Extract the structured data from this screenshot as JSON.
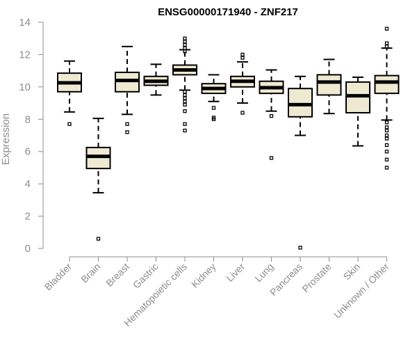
{
  "chart_data": {
    "type": "box",
    "title": "ENSG00000171940 - ZNF217",
    "xlabel": "",
    "ylabel": "Expression",
    "ylim": [
      0,
      14
    ],
    "yticks": [
      0,
      2,
      4,
      6,
      8,
      10,
      12,
      14
    ],
    "grid": false,
    "box_fill": "#efe9d2",
    "box_stroke": "#000000",
    "axis_color": "#8c8c8c",
    "categories": [
      "Bladder",
      "Brain",
      "Breast",
      "Gastric",
      "Hematopoietic cells",
      "Kidney",
      "Liver",
      "Lung",
      "Pancreas",
      "Prostate",
      "Skin",
      "Unknown / Other"
    ],
    "boxes": [
      {
        "min": 8.45,
        "q1": 9.7,
        "median": 10.25,
        "q3": 10.85,
        "max": 11.6,
        "outliers": [
          7.7
        ]
      },
      {
        "min": 3.45,
        "q1": 4.95,
        "median": 5.7,
        "q3": 6.25,
        "max": 8.05,
        "outliers": [
          0.6
        ]
      },
      {
        "min": 8.3,
        "q1": 9.7,
        "median": 10.4,
        "q3": 10.9,
        "max": 12.5,
        "outliers": [
          7.7,
          7.2
        ]
      },
      {
        "min": 9.5,
        "q1": 10.1,
        "median": 10.35,
        "q3": 10.65,
        "max": 11.4,
        "outliers": []
      },
      {
        "min": 9.8,
        "q1": 10.75,
        "median": 11.05,
        "q3": 11.35,
        "max": 12.3,
        "outliers": [
          13.0,
          12.8,
          12.6,
          12.4,
          12.2,
          9.7,
          9.5,
          9.3,
          9.1,
          8.9,
          8.5,
          7.7,
          7.3
        ]
      },
      {
        "min": 9.1,
        "q1": 9.6,
        "median": 9.9,
        "q3": 10.2,
        "max": 10.75,
        "outliers": [
          8.7,
          8.1,
          8.0
        ]
      },
      {
        "min": 9.0,
        "q1": 10.0,
        "median": 10.35,
        "q3": 10.65,
        "max": 11.55,
        "outliers": [
          12.0,
          11.8,
          8.4
        ]
      },
      {
        "min": 8.5,
        "q1": 9.6,
        "median": 9.95,
        "q3": 10.35,
        "max": 11.05,
        "outliers": [
          8.2,
          5.6
        ]
      },
      {
        "min": 7.0,
        "q1": 8.15,
        "median": 8.9,
        "q3": 9.9,
        "max": 10.65,
        "outliers": [
          0.05
        ]
      },
      {
        "min": 8.35,
        "q1": 9.5,
        "median": 10.3,
        "q3": 10.75,
        "max": 11.7,
        "outliers": []
      },
      {
        "min": 6.35,
        "q1": 8.4,
        "median": 9.45,
        "q3": 10.3,
        "max": 10.6,
        "outliers": []
      },
      {
        "min": 7.95,
        "q1": 9.6,
        "median": 10.3,
        "q3": 10.7,
        "max": 12.4,
        "outliers": [
          13.6,
          12.7,
          12.5,
          7.8,
          7.5,
          7.3,
          7.0,
          6.8,
          6.4,
          6.0,
          5.5,
          5.0
        ]
      }
    ]
  }
}
